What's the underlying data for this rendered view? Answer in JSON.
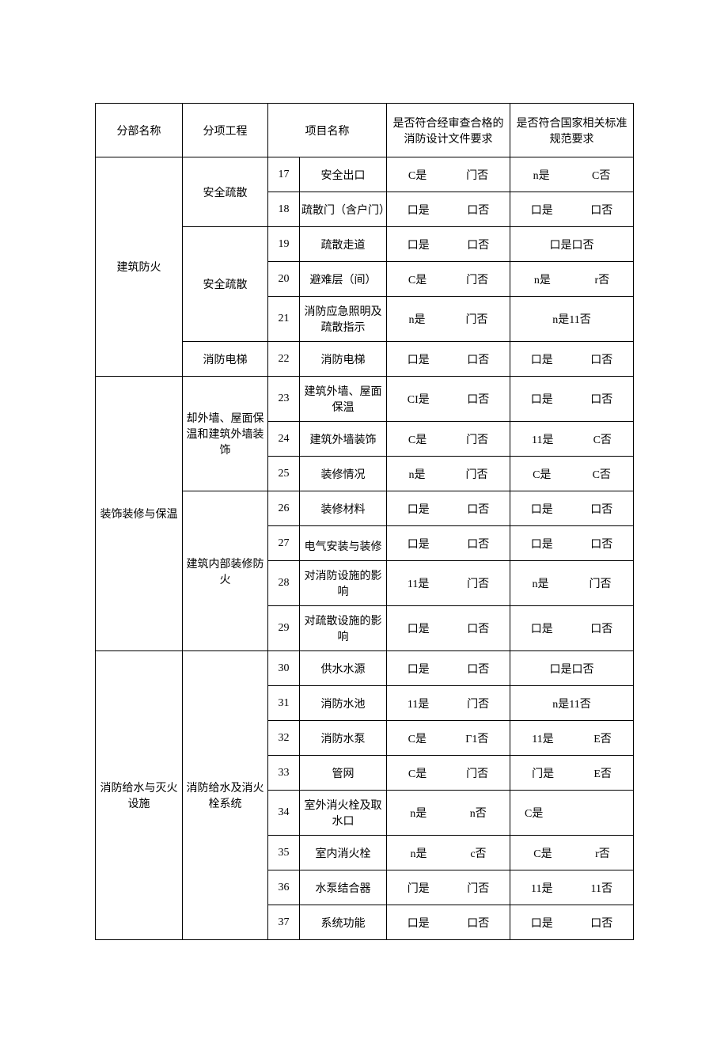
{
  "headers": {
    "section": "分部名称",
    "subsection": "分项工程",
    "item": "项目名称",
    "check1": "是否符合经审查合格的消防设计文件要求",
    "check2": "是否符合国家相关标准规范要求"
  },
  "sections": [
    {
      "name": "建筑防火",
      "subsections": [
        {
          "name": "安全疏散",
          "rows": [
            {
              "num": "17",
              "item": "安全出口",
              "c1a": "C是",
              "c1b": "门否",
              "c2a": "n是",
              "c2b": "C否"
            },
            {
              "num": "18",
              "item": "疏散门（含户门）",
              "c1a": "口是",
              "c1b": "口否",
              "c2a": "口是",
              "c2b": "口否"
            }
          ]
        },
        {
          "name": "安全疏散",
          "rows": [
            {
              "num": "19",
              "item": "疏散走道",
              "c1a": "口是",
              "c1b": "口否",
              "c2merged": "口是口否"
            },
            {
              "num": "20",
              "item": "避难层（间）",
              "c1a": "C是",
              "c1b": "门否",
              "c2a": "n是",
              "c2b": "r否"
            },
            {
              "num": "21",
              "item": "消防应急照明及疏散指示",
              "c1a": "n是",
              "c1b": "门否",
              "c2merged": "n是11否"
            }
          ]
        },
        {
          "name": "消防电梯",
          "rows": [
            {
              "num": "22",
              "item": "消防电梯",
              "c1a": "口是",
              "c1b": "口否",
              "c2a": "口是",
              "c2b": "口否"
            }
          ]
        }
      ]
    },
    {
      "name": "装饰装修与保温",
      "subsections": [
        {
          "name": "却外墙、屋面保温和建筑外墙装饰",
          "rows": [
            {
              "num": "23",
              "item": "建筑外墙、屋面保温",
              "c1a": "CI是",
              "c1b": "口否",
              "c2a": "口是",
              "c2b": "口否"
            },
            {
              "num": "24",
              "item": "建筑外墙装饰",
              "c1a": "C是",
              "c1b": "门否",
              "c2a": "11是",
              "c2b": "C否"
            },
            {
              "num": "25",
              "item": "装修情况",
              "c1a": "n是",
              "c1b": "门否",
              "c2a": "C是",
              "c2b": "C否"
            }
          ]
        },
        {
          "name": "建筑内部装修防火",
          "rows": [
            {
              "num": "26",
              "item": "装修材料",
              "c1a": "口是",
              "c1b": "口否",
              "c2a": "口是",
              "c2b": "口否"
            },
            {
              "num": "27",
              "item": "电气安装与装修",
              "c1a": "口是",
              "c1b": "口否",
              "c2a": "口是",
              "c2b": "口否",
              "itemAlignBottom": true
            },
            {
              "num": "28",
              "item": "对消防设施的影响",
              "c1a": "11是",
              "c1b": "门否",
              "c2a": "n是",
              "c2b": "门否"
            },
            {
              "num": "29",
              "item": "对疏散设施的影响",
              "c1a": "口是",
              "c1b": "口否",
              "c2a": "口是",
              "c2b": "口否"
            }
          ]
        }
      ]
    },
    {
      "name": "消防给水与灭火设施",
      "subsections": [
        {
          "name": "消防给水及消火栓系统",
          "rows": [
            {
              "num": "30",
              "item": "供水水源",
              "c1a": "口是",
              "c1b": "口否",
              "c2merged": "口是口否"
            },
            {
              "num": "31",
              "item": "消防水池",
              "c1a": "11是",
              "c1b": "门否",
              "c2merged": "n是11否"
            },
            {
              "num": "32",
              "item": "消防水泵",
              "c1a": "C是",
              "c1b": "Γ1否",
              "c2a": "11是",
              "c2b": "E否"
            },
            {
              "num": "33",
              "item": "管网",
              "c1a": "C是",
              "c1b": "门否",
              "c2a": "门是",
              "c2b": "E否"
            },
            {
              "num": "34",
              "item": "室外消火栓及取水口",
              "c1a": "n是",
              "c1b": "n否",
              "c2leftonly": "C是"
            },
            {
              "num": "35",
              "item": "室内消火栓",
              "c1a": "n是",
              "c1b": "c否",
              "c2a": "C是",
              "c2b": "r否"
            },
            {
              "num": "36",
              "item": "水泵结合器",
              "c1a": "门是",
              "c1b": "门否",
              "c2a": "11是",
              "c2b": "11否"
            },
            {
              "num": "37",
              "item": "系统功能",
              "c1a": "口是",
              "c1b": "口否",
              "c2a": "口是",
              "c2b": "口否"
            }
          ]
        }
      ]
    }
  ]
}
